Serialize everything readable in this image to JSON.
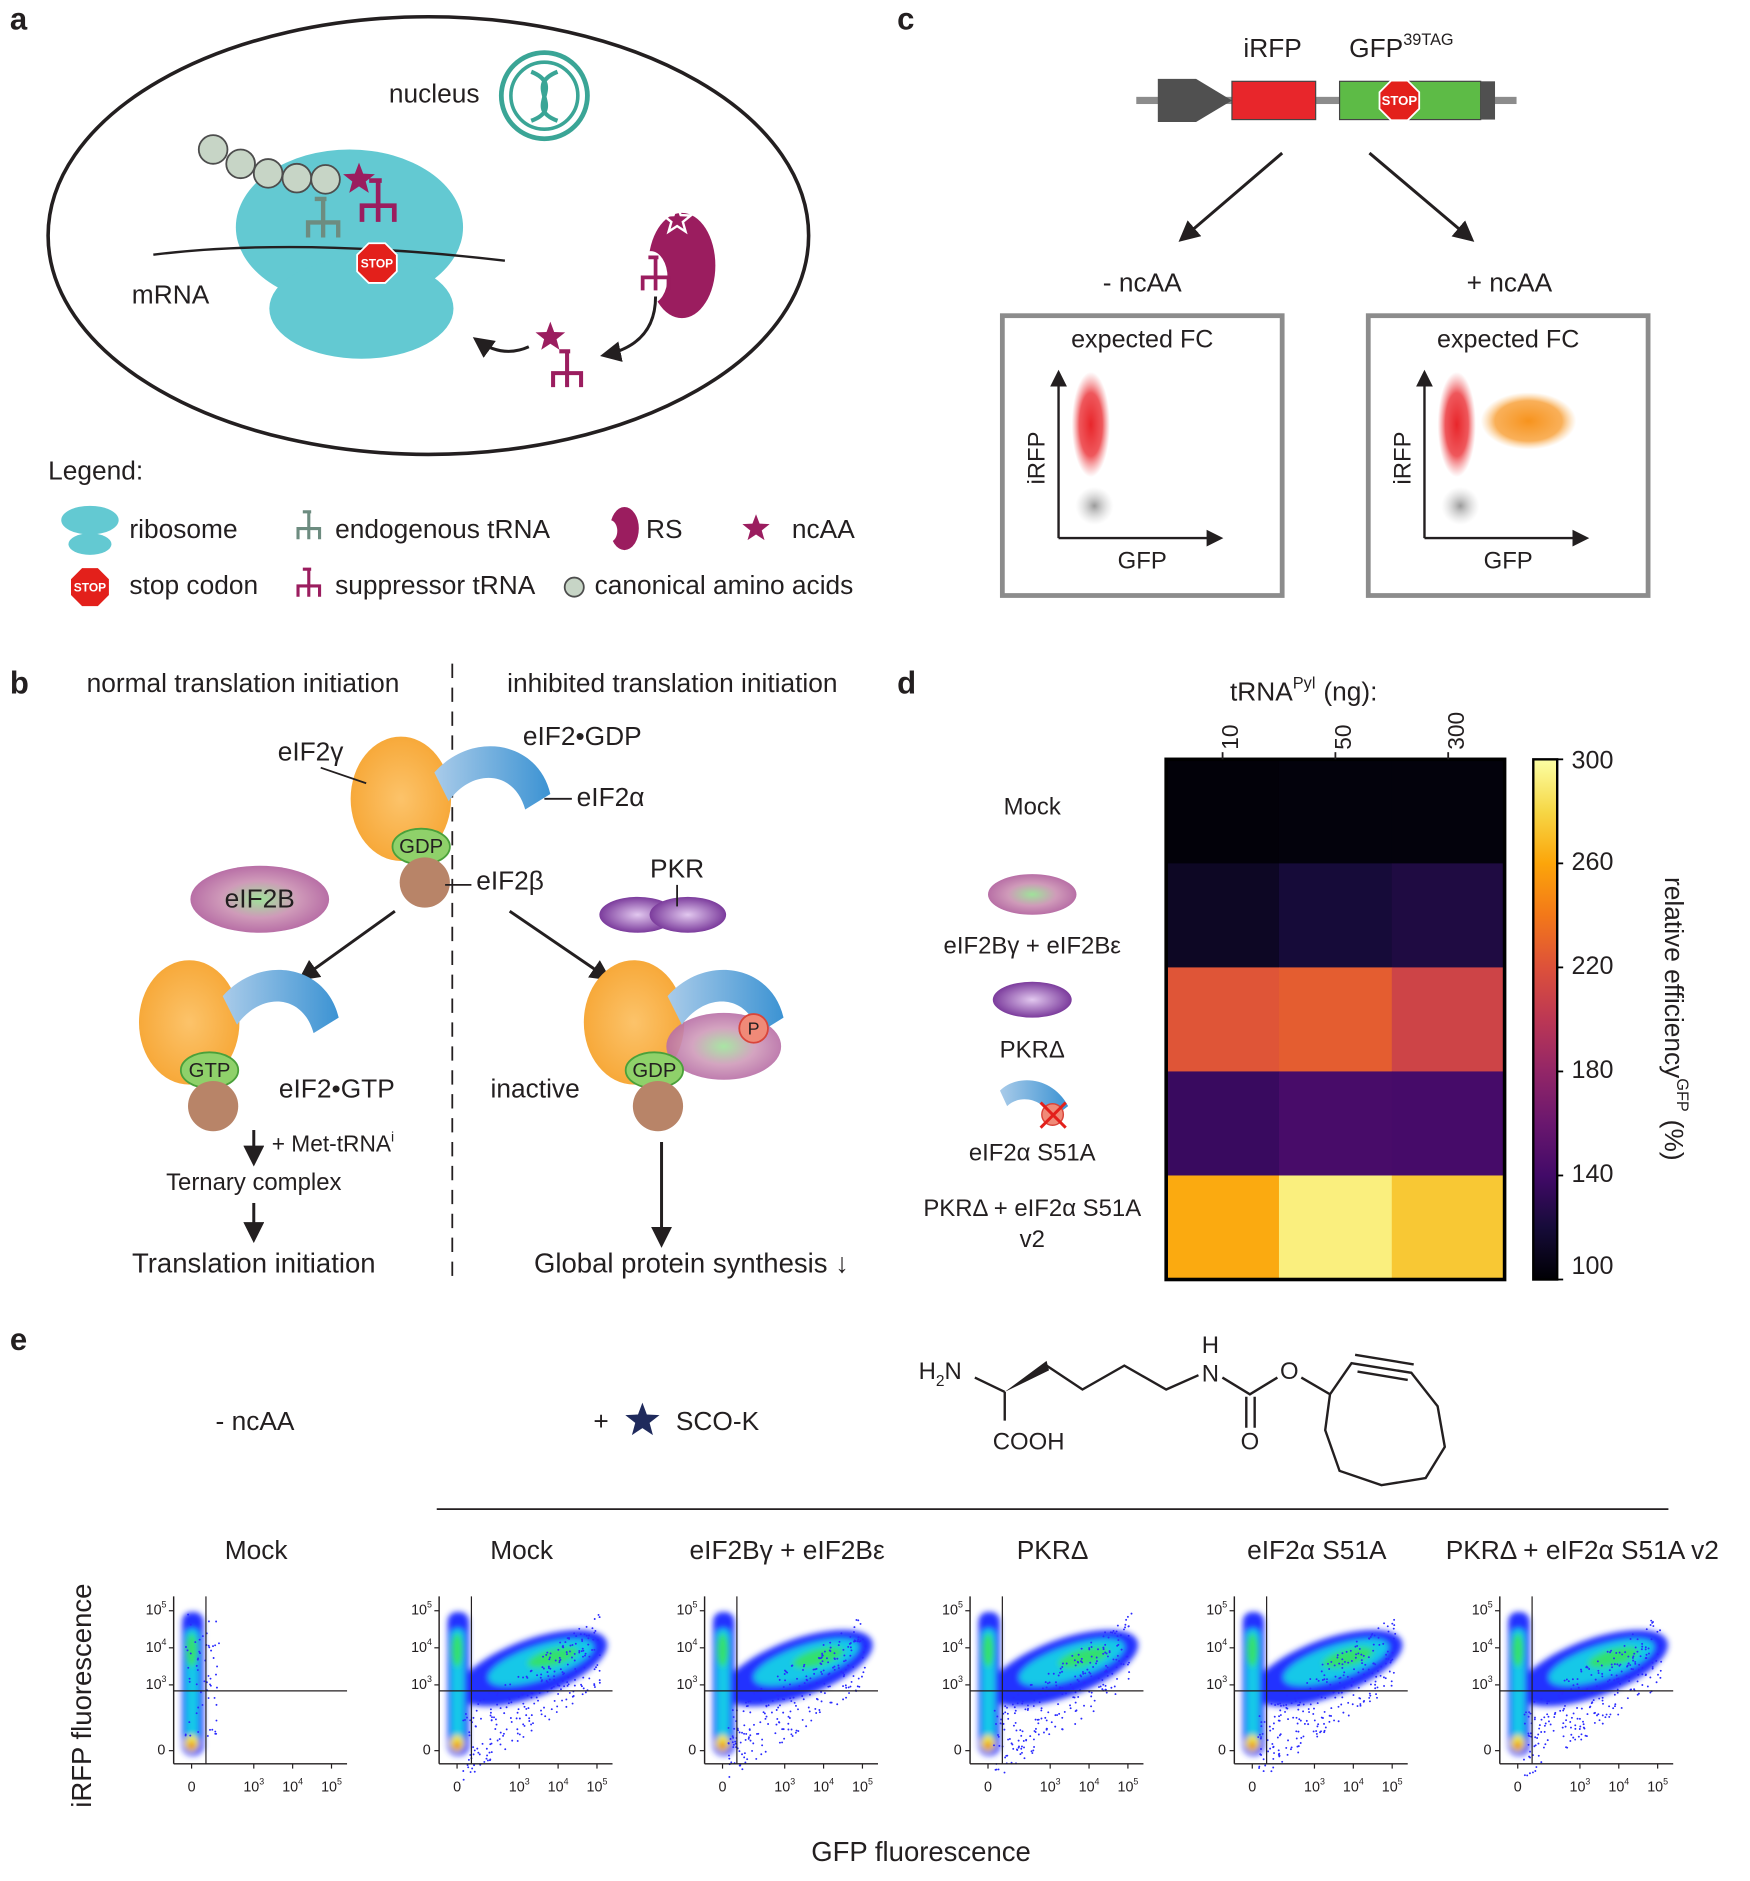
{
  "panel_labels": [
    "a",
    "b",
    "c",
    "d",
    "e"
  ],
  "a": {
    "nucleus": "nucleus",
    "mrna": "mRNA",
    "stop": "STOP",
    "legend_title": "Legend:",
    "legend": {
      "ribosome": "ribosome",
      "endogenous_trna": "endogenous tRNA",
      "rs": "RS",
      "ncaa": "ncAA",
      "stop_codon": "stop codon",
      "suppressor_trna": "suppressor tRNA",
      "canonical": "canonical amino acids"
    },
    "legend_stop": "STOP"
  },
  "b": {
    "left_title": "normal translation initiation",
    "right_title": "inhibited translation initiation",
    "eif2g": "eIF2γ",
    "eif2_gdp": "eIF2•GDP",
    "eif2a": "eIF2α",
    "gdp": "GDP",
    "eif2beta": "eIF2β",
    "eif2B": "eIF2B",
    "pkr": "PKR",
    "gtp": "GTP",
    "eif2_gtp": "eIF2•GTP",
    "met_trna": "+ Met-tRNA",
    "met_trna_sup": "i",
    "ternary": "Ternary complex",
    "translation": "Translation initiation",
    "inactive": "inactive",
    "gdp2": "GDP",
    "p": "P",
    "global": "Global protein synthesis ↓"
  },
  "c": {
    "irfp": "iRFP",
    "gfp": "GFP",
    "gfp_sup": "39TAG",
    "stop": "STOP",
    "minus": "- ncAA",
    "plus": "+ ncAA",
    "boxes": [
      {
        "title": "expected FC",
        "y_label": "iRFP",
        "x_label": "GFP"
      },
      {
        "title": "expected FC",
        "y_label": "iRFP",
        "x_label": "GFP"
      }
    ]
  },
  "chart_data": {
    "type": "heatmap",
    "title": "tRNA",
    "title_sup": "Pyl",
    "title_suffix": "(ng):",
    "x_categories": [
      "10",
      "50",
      "300"
    ],
    "y_categories": [
      "Mock",
      "eIF2Bγ + eIF2Bε",
      "PKRΔ",
      "eIF2α S51A",
      "PKRΔ + eIF2α S51A v2"
    ],
    "values": [
      [
        102,
        103,
        103
      ],
      [
        112,
        120,
        124
      ],
      [
        222,
        226,
        210
      ],
      [
        136,
        143,
        142
      ],
      [
        262,
        292,
        274
      ]
    ],
    "zlim": [
      100,
      300
    ],
    "zticks": [
      100,
      140,
      180,
      220,
      260,
      300
    ],
    "colormap": "inferno",
    "colorbar_label": "relative efficiency",
    "colorbar_label_sup": "GFP",
    "colorbar_label_suffix": "(%)"
  },
  "e": {
    "minus": "- ncAA",
    "plus": "+",
    "compound": "SCO-K",
    "chem": {
      "h2n_h": "H",
      "h2n_sub": "2",
      "h2n_n": "N",
      "h": "H",
      "n": "N",
      "o1": "O",
      "o2": "O",
      "cooh": "COOH"
    },
    "plots": [
      {
        "title": "Mock"
      },
      {
        "title": "Mock"
      },
      {
        "title": "eIF2Bγ + eIF2Bε"
      },
      {
        "title": "PKRΔ"
      },
      {
        "title": "eIF2α S51A"
      },
      {
        "title": "PKRΔ + eIF2α S51A v2"
      }
    ],
    "ticks": [
      0,
      {
        "value": 1000,
        "label": "10",
        "sup": "3"
      },
      {
        "value": 10000,
        "label": "10",
        "sup": "4"
      },
      {
        "value": 100000,
        "label": "10",
        "sup": "5"
      }
    ],
    "y_label": "iRFP fluorescence",
    "x_label": "GFP fluorescence"
  }
}
